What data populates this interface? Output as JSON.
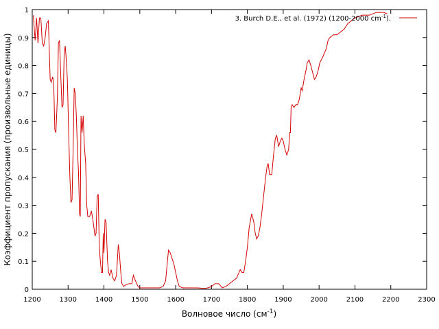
{
  "chart_data": {
    "type": "line",
    "xlabel": {
      "text": "Волновое число (см",
      "sup": "-1",
      "tail": ")"
    },
    "ylabel": "Коэффициент пропускания (произвольные единицы)",
    "legend": "top-right",
    "xlim": [
      1200,
      2300
    ],
    "xticks": [
      1200,
      1300,
      1400,
      1500,
      1600,
      1700,
      1800,
      1900,
      2000,
      2100,
      2200,
      2300
    ],
    "ylim": [
      0,
      1
    ],
    "yticks": [
      0,
      0.1,
      0.2,
      0.3,
      0.4,
      0.5,
      0.6,
      0.7,
      0.8,
      0.9,
      1
    ],
    "series": [
      {
        "name": {
          "text": "3. Burch D.E.,  et al. (1972) (1200-2000 cm",
          "sup": "-1",
          "tail": ")."
        },
        "color": "#d40000",
        "x": [
          1203,
          1208,
          1212,
          1216,
          1220,
          1224,
          1228,
          1232,
          1236,
          1240,
          1245,
          1250,
          1253,
          1257,
          1260,
          1263,
          1266,
          1270,
          1273,
          1276,
          1280,
          1283,
          1286,
          1289,
          1292,
          1295,
          1298,
          1302,
          1305,
          1308,
          1311,
          1314,
          1317,
          1320,
          1323,
          1326,
          1329,
          1332,
          1334,
          1336,
          1339,
          1342,
          1345,
          1349,
          1352,
          1355,
          1360,
          1365,
          1370,
          1375,
          1378,
          1381,
          1384,
          1387,
          1390,
          1393,
          1396,
          1398,
          1400,
          1403,
          1406,
          1410,
          1413,
          1416,
          1420,
          1425,
          1430,
          1435,
          1440,
          1443,
          1447,
          1450,
          1455,
          1460,
          1470,
          1478,
          1482,
          1488,
          1495,
          1500,
          1520,
          1540,
          1555,
          1565,
          1572,
          1577,
          1580,
          1585,
          1590,
          1595,
          1600,
          1605,
          1610,
          1620,
          1660,
          1680,
          1690,
          1700,
          1710,
          1720,
          1730,
          1740,
          1750,
          1760,
          1770,
          1780,
          1785,
          1790,
          1795,
          1800,
          1805,
          1812,
          1818,
          1822,
          1826,
          1830,
          1835,
          1840,
          1845,
          1850,
          1855,
          1858,
          1862,
          1868,
          1873,
          1878,
          1882,
          1887,
          1892,
          1896,
          1900,
          1905,
          1910,
          1915,
          1918,
          1920,
          1922,
          1925,
          1930,
          1935,
          1940,
          1945,
          1950,
          1953,
          1958,
          1963,
          1967,
          1972,
          1977,
          1983,
          1987,
          1992,
          1997,
          2002,
          2010,
          2020,
          2025,
          2030,
          2040,
          2050,
          2060,
          2070,
          2080,
          2090,
          2100,
          2120,
          2140,
          2160,
          2180,
          2190
        ],
        "values": [
          0.98,
          0.89,
          0.97,
          0.88,
          0.97,
          0.97,
          0.88,
          0.87,
          0.9,
          0.95,
          0.96,
          0.75,
          0.74,
          0.76,
          0.73,
          0.57,
          0.56,
          0.68,
          0.88,
          0.89,
          0.75,
          0.65,
          0.66,
          0.84,
          0.87,
          0.82,
          0.75,
          0.54,
          0.4,
          0.31,
          0.32,
          0.5,
          0.72,
          0.7,
          0.62,
          0.5,
          0.42,
          0.27,
          0.26,
          0.62,
          0.56,
          0.62,
          0.52,
          0.45,
          0.3,
          0.26,
          0.26,
          0.28,
          0.24,
          0.19,
          0.2,
          0.33,
          0.34,
          0.15,
          0.1,
          0.06,
          0.06,
          0.2,
          0.13,
          0.25,
          0.24,
          0.1,
          0.06,
          0.05,
          0.07,
          0.04,
          0.03,
          0.05,
          0.16,
          0.13,
          0.06,
          0.02,
          0.01,
          0.015,
          0.02,
          0.02,
          0.05,
          0.03,
          0.01,
          0.005,
          0.005,
          0.005,
          0.005,
          0.01,
          0.03,
          0.1,
          0.14,
          0.13,
          0.11,
          0.09,
          0.06,
          0.03,
          0.01,
          0.005,
          0.005,
          0.003,
          0.005,
          0.01,
          0.02,
          0.02,
          0.005,
          0.01,
          0.02,
          0.03,
          0.04,
          0.07,
          0.06,
          0.06,
          0.1,
          0.15,
          0.22,
          0.27,
          0.24,
          0.2,
          0.18,
          0.19,
          0.22,
          0.27,
          0.33,
          0.39,
          0.44,
          0.45,
          0.41,
          0.41,
          0.48,
          0.54,
          0.55,
          0.51,
          0.53,
          0.54,
          0.53,
          0.5,
          0.48,
          0.5,
          0.56,
          0.56,
          0.65,
          0.66,
          0.65,
          0.66,
          0.66,
          0.68,
          0.72,
          0.71,
          0.75,
          0.78,
          0.81,
          0.82,
          0.8,
          0.77,
          0.75,
          0.76,
          0.78,
          0.81,
          0.83,
          0.86,
          0.89,
          0.9,
          0.91,
          0.91,
          0.92,
          0.93,
          0.95,
          0.96,
          0.97,
          0.98,
          0.98,
          0.99,
          0.99,
          0.985
        ]
      }
    ]
  }
}
